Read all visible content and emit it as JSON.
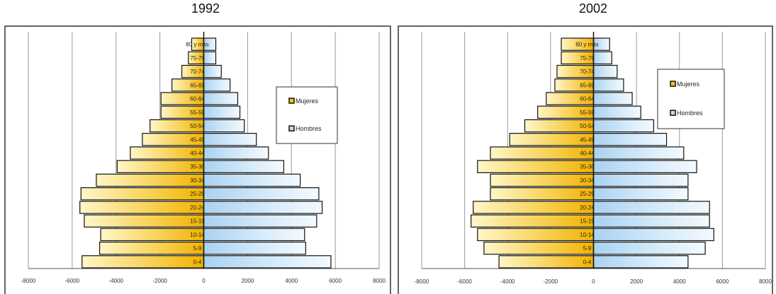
{
  "chart_data": [
    {
      "type": "bar",
      "orientation": "horizontal",
      "title": "1992",
      "categories": [
        "0-4",
        "5-9",
        "10-14",
        "15-19",
        "20-24",
        "25-29",
        "30-34",
        "35-30",
        "40-44",
        "45-49",
        "50-54",
        "55-59",
        "60-64",
        "65-69",
        "70-74",
        "75-79",
        "80 y más"
      ],
      "series": [
        {
          "name": "Mujeres",
          "values": [
            -5550,
            -4750,
            -4700,
            -5450,
            -5650,
            -5600,
            -4900,
            -3950,
            -3350,
            -2800,
            -2450,
            -1950,
            -1950,
            -1450,
            -1000,
            -700,
            -550
          ]
        },
        {
          "name": "Hombres",
          "values": [
            5800,
            4650,
            4600,
            5150,
            5400,
            5250,
            4400,
            3650,
            2950,
            2400,
            1850,
            1650,
            1550,
            1200,
            800,
            550,
            550
          ]
        }
      ],
      "xlim": [
        -8000,
        8000
      ],
      "xticks": [
        "-8000",
        "-6000",
        "-4000",
        "-2000",
        "0",
        "2000",
        "4000",
        "6000",
        "8000"
      ],
      "grid": true,
      "legend": "right"
    },
    {
      "type": "bar",
      "orientation": "horizontal",
      "title": "2002",
      "categories": [
        "0-4",
        "5-9",
        "10-14",
        "15-19",
        "20-24",
        "25-29",
        "30-34",
        "35-30",
        "40-44",
        "45-49",
        "50-54",
        "55-59",
        "60-64",
        "65-69",
        "70-74",
        "75-79",
        "80 y más"
      ],
      "series": [
        {
          "name": "Mujeres",
          "values": [
            -4400,
            -5100,
            -5400,
            -5700,
            -5600,
            -4800,
            -4800,
            -5400,
            -4800,
            -3900,
            -3200,
            -2600,
            -2200,
            -1800,
            -1700,
            -1500,
            -1500
          ]
        },
        {
          "name": "Hombres",
          "values": [
            4400,
            5200,
            5600,
            5400,
            5400,
            4400,
            4400,
            4800,
            4200,
            3400,
            2800,
            2200,
            1800,
            1400,
            1100,
            850,
            750
          ]
        }
      ],
      "xlim": [
        -8000,
        8000
      ],
      "xticks": [
        "-8000",
        "-6000",
        "-4000",
        "-2000",
        "0",
        "2000",
        "4000",
        "6000",
        "8000"
      ],
      "grid": true,
      "legend": "top-right"
    }
  ],
  "colors": {
    "mujeres": "#f5c518",
    "hombres": "#b8dcf5"
  }
}
